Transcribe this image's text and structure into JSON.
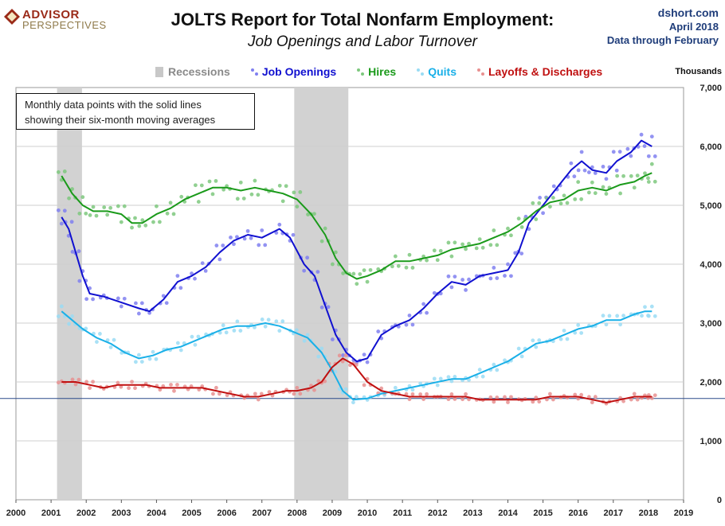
{
  "brand": {
    "name_line1": "ADVISOR",
    "name_line2": "PERSPECTIVES"
  },
  "meta": {
    "site": "dshort.com",
    "date": "April 2018",
    "data_through": "Data through February"
  },
  "note": {
    "line1": "Monthly data points with the solid lines",
    "line2": "showing their six-month moving averages"
  },
  "chart_data": {
    "type": "line",
    "title": "JOLTS Report for Total Nonfarm Employment:",
    "subtitle": "Job Openings and Labor Turnover",
    "units_label": "Thousands",
    "xlim": [
      2000,
      2019
    ],
    "ylim": [
      0,
      7000
    ],
    "x_ticks": [
      "2000",
      "2001",
      "2002",
      "2003",
      "2004",
      "2005",
      "2006",
      "2007",
      "2008",
      "2009",
      "2010",
      "2011",
      "2012",
      "2013",
      "2014",
      "2015",
      "2016",
      "2017",
      "2018",
      "2019"
    ],
    "y_ticks": [
      "0",
      "1,000",
      "2,000",
      "3,000",
      "4,000",
      "5,000",
      "6,000",
      "7,000"
    ],
    "y_tick_values": [
      0,
      1000,
      2000,
      3000,
      4000,
      5000,
      6000,
      7000
    ],
    "grid": "horizontal",
    "reference_line": 1720,
    "recessions": [
      {
        "start": 2001.17,
        "end": 2001.88
      },
      {
        "start": 2007.92,
        "end": 2009.46
      }
    ],
    "legend": [
      {
        "label": "Recessions",
        "color": "#c8c8c8"
      },
      {
        "label": "Job Openings",
        "color": "#1010d0"
      },
      {
        "label": "Hires",
        "color": "#1a9a1a"
      },
      {
        "label": "Quits",
        "color": "#1ab0e8"
      },
      {
        "label": "Layoffs & Discharges",
        "color": "#c01010"
      }
    ],
    "series": [
      {
        "name": "Job Openings",
        "color": "#1010d0",
        "dot_color": "#8080f0",
        "values": [
          [
            2001.3,
            4800
          ],
          [
            2001.5,
            4600
          ],
          [
            2001.7,
            4200
          ],
          [
            2001.9,
            3800
          ],
          [
            2002.1,
            3500
          ],
          [
            2002.5,
            3450
          ],
          [
            2003.0,
            3350
          ],
          [
            2003.5,
            3250
          ],
          [
            2003.8,
            3200
          ],
          [
            2004.2,
            3400
          ],
          [
            2004.6,
            3700
          ],
          [
            2005.0,
            3800
          ],
          [
            2005.4,
            3950
          ],
          [
            2005.8,
            4200
          ],
          [
            2006.2,
            4400
          ],
          [
            2006.6,
            4500
          ],
          [
            2007.0,
            4450
          ],
          [
            2007.5,
            4600
          ],
          [
            2007.8,
            4450
          ],
          [
            2008.2,
            4000
          ],
          [
            2008.5,
            3800
          ],
          [
            2008.8,
            3300
          ],
          [
            2009.1,
            2800
          ],
          [
            2009.4,
            2500
          ],
          [
            2009.7,
            2350
          ],
          [
            2010.0,
            2400
          ],
          [
            2010.4,
            2800
          ],
          [
            2010.8,
            2950
          ],
          [
            2011.2,
            3050
          ],
          [
            2011.6,
            3250
          ],
          [
            2012.0,
            3500
          ],
          [
            2012.4,
            3700
          ],
          [
            2012.8,
            3650
          ],
          [
            2013.2,
            3800
          ],
          [
            2013.6,
            3850
          ],
          [
            2014.0,
            3900
          ],
          [
            2014.3,
            4200
          ],
          [
            2014.6,
            4700
          ],
          [
            2015.0,
            5000
          ],
          [
            2015.4,
            5300
          ],
          [
            2015.8,
            5600
          ],
          [
            2016.1,
            5750
          ],
          [
            2016.4,
            5600
          ],
          [
            2016.8,
            5550
          ],
          [
            2017.1,
            5750
          ],
          [
            2017.5,
            5900
          ],
          [
            2017.8,
            6100
          ],
          [
            2018.1,
            6000
          ]
        ]
      },
      {
        "name": "Hires",
        "color": "#1a9a1a",
        "dot_color": "#7ec87e",
        "values": [
          [
            2001.3,
            5500
          ],
          [
            2001.6,
            5200
          ],
          [
            2001.9,
            5000
          ],
          [
            2002.2,
            4900
          ],
          [
            2002.6,
            4900
          ],
          [
            2003.0,
            4850
          ],
          [
            2003.3,
            4700
          ],
          [
            2003.6,
            4700
          ],
          [
            2004.0,
            4850
          ],
          [
            2004.4,
            4950
          ],
          [
            2004.8,
            5100
          ],
          [
            2005.2,
            5200
          ],
          [
            2005.6,
            5300
          ],
          [
            2006.0,
            5300
          ],
          [
            2006.4,
            5250
          ],
          [
            2006.8,
            5300
          ],
          [
            2007.2,
            5250
          ],
          [
            2007.6,
            5200
          ],
          [
            2008.0,
            5100
          ],
          [
            2008.4,
            4850
          ],
          [
            2008.8,
            4500
          ],
          [
            2009.1,
            4100
          ],
          [
            2009.4,
            3850
          ],
          [
            2009.7,
            3750
          ],
          [
            2010.0,
            3800
          ],
          [
            2010.4,
            3900
          ],
          [
            2010.8,
            4050
          ],
          [
            2011.2,
            4050
          ],
          [
            2011.6,
            4100
          ],
          [
            2012.0,
            4150
          ],
          [
            2012.4,
            4250
          ],
          [
            2012.8,
            4300
          ],
          [
            2013.2,
            4350
          ],
          [
            2013.6,
            4450
          ],
          [
            2014.0,
            4550
          ],
          [
            2014.4,
            4700
          ],
          [
            2014.8,
            4900
          ],
          [
            2015.2,
            5050
          ],
          [
            2015.6,
            5100
          ],
          [
            2016.0,
            5250
          ],
          [
            2016.4,
            5300
          ],
          [
            2016.8,
            5250
          ],
          [
            2017.2,
            5350
          ],
          [
            2017.6,
            5400
          ],
          [
            2017.9,
            5500
          ],
          [
            2018.1,
            5550
          ]
        ]
      },
      {
        "name": "Quits",
        "color": "#1ab0e8",
        "dot_color": "#9adcf4",
        "values": [
          [
            2001.3,
            3200
          ],
          [
            2001.6,
            3050
          ],
          [
            2001.9,
            2900
          ],
          [
            2002.3,
            2750
          ],
          [
            2002.7,
            2650
          ],
          [
            2003.1,
            2500
          ],
          [
            2003.5,
            2400
          ],
          [
            2003.9,
            2450
          ],
          [
            2004.3,
            2550
          ],
          [
            2004.7,
            2600
          ],
          [
            2005.1,
            2700
          ],
          [
            2005.5,
            2800
          ],
          [
            2005.9,
            2900
          ],
          [
            2006.3,
            2950
          ],
          [
            2006.7,
            2950
          ],
          [
            2007.1,
            3000
          ],
          [
            2007.5,
            2950
          ],
          [
            2007.9,
            2850
          ],
          [
            2008.3,
            2750
          ],
          [
            2008.7,
            2500
          ],
          [
            2009.0,
            2200
          ],
          [
            2009.3,
            1850
          ],
          [
            2009.6,
            1700
          ],
          [
            2010.0,
            1720
          ],
          [
            2010.4,
            1800
          ],
          [
            2010.8,
            1850
          ],
          [
            2011.2,
            1900
          ],
          [
            2011.6,
            1950
          ],
          [
            2012.0,
            2000
          ],
          [
            2012.4,
            2050
          ],
          [
            2012.8,
            2050
          ],
          [
            2013.2,
            2150
          ],
          [
            2013.6,
            2250
          ],
          [
            2014.0,
            2350
          ],
          [
            2014.4,
            2500
          ],
          [
            2014.8,
            2650
          ],
          [
            2015.2,
            2700
          ],
          [
            2015.6,
            2800
          ],
          [
            2016.0,
            2900
          ],
          [
            2016.4,
            2950
          ],
          [
            2016.8,
            3050
          ],
          [
            2017.2,
            3050
          ],
          [
            2017.6,
            3150
          ],
          [
            2017.9,
            3200
          ],
          [
            2018.1,
            3200
          ]
        ]
      },
      {
        "name": "Layoffs & Discharges",
        "color": "#c01010",
        "dot_color": "#e89090",
        "values": [
          [
            2001.3,
            2000
          ],
          [
            2001.7,
            2000
          ],
          [
            2002.1,
            1950
          ],
          [
            2002.5,
            1900
          ],
          [
            2002.9,
            1950
          ],
          [
            2003.3,
            1950
          ],
          [
            2003.7,
            1950
          ],
          [
            2004.1,
            1900
          ],
          [
            2004.5,
            1900
          ],
          [
            2004.9,
            1900
          ],
          [
            2005.3,
            1900
          ],
          [
            2005.7,
            1850
          ],
          [
            2006.1,
            1800
          ],
          [
            2006.5,
            1750
          ],
          [
            2006.9,
            1750
          ],
          [
            2007.3,
            1800
          ],
          [
            2007.7,
            1850
          ],
          [
            2008.0,
            1850
          ],
          [
            2008.4,
            1900
          ],
          [
            2008.7,
            2000
          ],
          [
            2009.0,
            2250
          ],
          [
            2009.3,
            2400
          ],
          [
            2009.6,
            2300
          ],
          [
            2010.0,
            2000
          ],
          [
            2010.4,
            1850
          ],
          [
            2010.8,
            1800
          ],
          [
            2011.2,
            1750
          ],
          [
            2011.6,
            1750
          ],
          [
            2012.0,
            1750
          ],
          [
            2012.4,
            1750
          ],
          [
            2012.8,
            1750
          ],
          [
            2013.2,
            1700
          ],
          [
            2013.6,
            1700
          ],
          [
            2014.0,
            1700
          ],
          [
            2014.4,
            1700
          ],
          [
            2014.8,
            1700
          ],
          [
            2015.2,
            1750
          ],
          [
            2015.6,
            1750
          ],
          [
            2016.0,
            1750
          ],
          [
            2016.4,
            1700
          ],
          [
            2016.8,
            1650
          ],
          [
            2017.2,
            1700
          ],
          [
            2017.6,
            1750
          ],
          [
            2017.9,
            1750
          ],
          [
            2018.1,
            1750
          ]
        ]
      }
    ]
  }
}
